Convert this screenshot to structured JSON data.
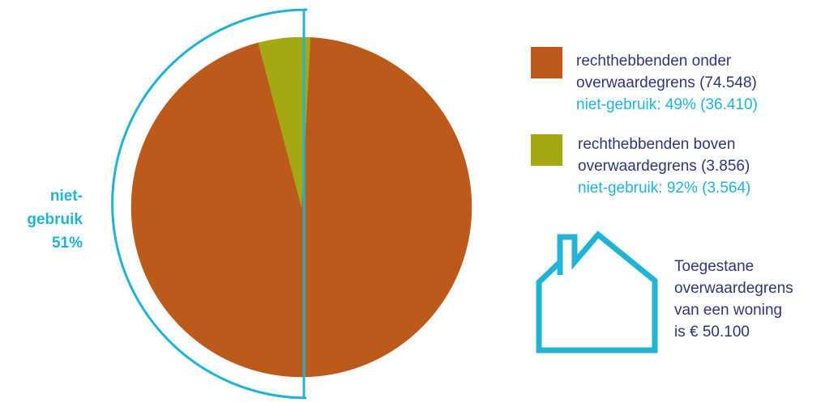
{
  "chart_data": {
    "type": "pie",
    "title": "",
    "slices": [
      {
        "label_line1": "rechthebbenden onder",
        "label_line2": "overwaardegrens (74.548)",
        "sublabel": "niet-gebruik: 49% (36.410)",
        "value": 74548,
        "color": "#bb5a1b"
      },
      {
        "label_line1": "rechthebbenden boven",
        "label_line2": "overwaardegrens (3.856)",
        "sublabel": "niet-gebruik: 92% (3.564)",
        "value": 3856,
        "color": "#a4a812"
      }
    ],
    "bracket": {
      "label_line1": "niet-",
      "label_line2": "gebruik",
      "label_line3": "51%",
      "color": "#20b3d4"
    },
    "legend_placement": "right"
  },
  "house_note": {
    "line1": "Toegestane",
    "line2": "overwaardegrens",
    "line3": "van een woning",
    "line4": "is € 50.100",
    "icon": "house-icon",
    "color": "#20b3d4"
  }
}
